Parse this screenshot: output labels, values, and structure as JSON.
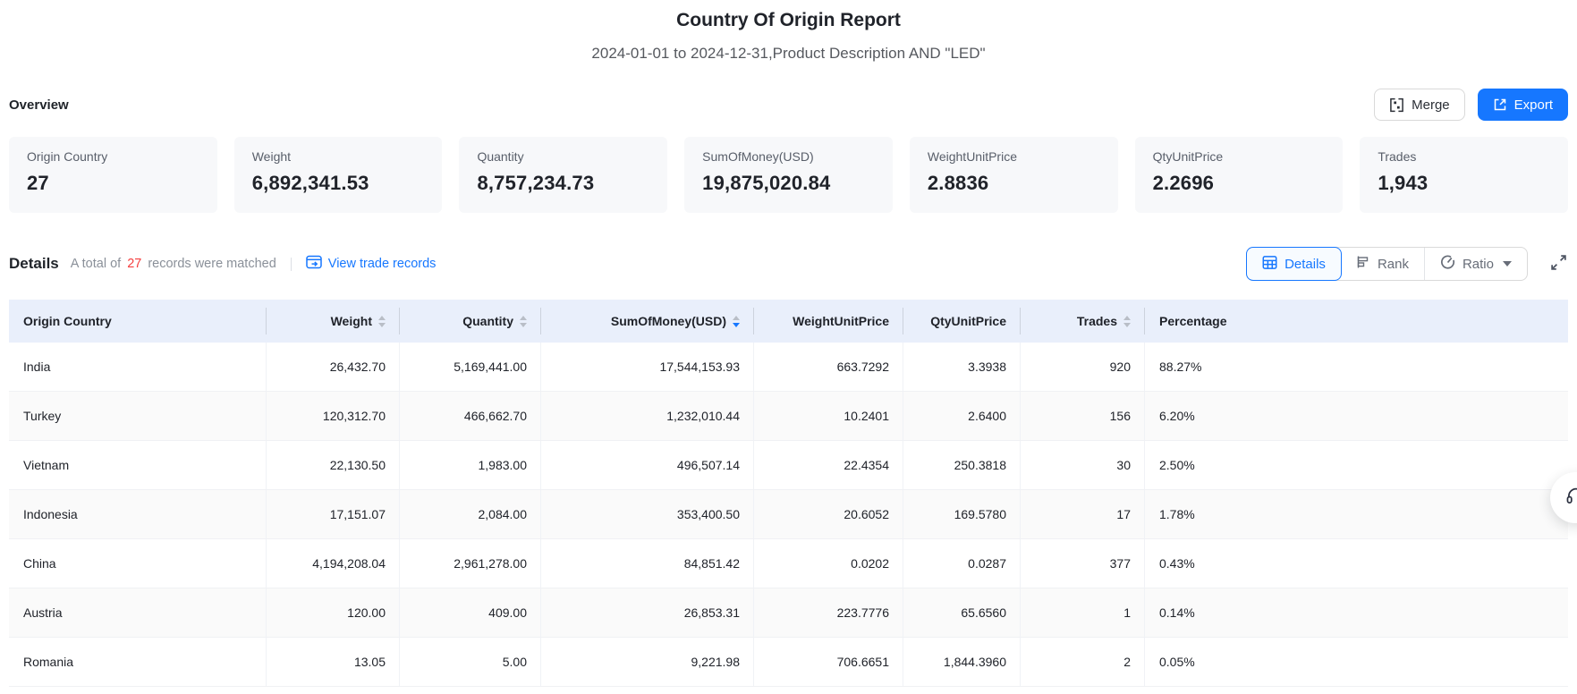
{
  "colors": {
    "accent_blue": "#1677ff",
    "count_red": "#f53f3f",
    "table_header_bg": "#e9effb",
    "card_bg": "#f7f8fa"
  },
  "report": {
    "title": "Country Of Origin Report",
    "subtitle": "2024-01-01 to 2024-12-31,Product Description AND \"LED\""
  },
  "overview": {
    "heading": "Overview",
    "merge_label": "Merge",
    "export_label": "Export",
    "cards": [
      {
        "label": "Origin Country",
        "value": "27"
      },
      {
        "label": "Weight",
        "value": "6,892,341.53"
      },
      {
        "label": "Quantity",
        "value": "8,757,234.73"
      },
      {
        "label": "SumOfMoney(USD)",
        "value": "19,875,020.84"
      },
      {
        "label": "WeightUnitPrice",
        "value": "2.8836"
      },
      {
        "label": "QtyUnitPrice",
        "value": "2.2696"
      },
      {
        "label": "Trades",
        "value": "1,943"
      }
    ]
  },
  "details": {
    "heading": "Details",
    "match_prefix": "A total of",
    "match_count": "27",
    "match_suffix": "records were matched",
    "view_trade_records_label": "View trade records",
    "tabs": [
      {
        "label": "Details",
        "active": true
      },
      {
        "label": "Rank",
        "active": false
      },
      {
        "label": "Ratio",
        "active": false,
        "dropdown": true
      }
    ]
  },
  "table": {
    "columns": [
      {
        "label": "Origin Country",
        "align": "left",
        "sortable": false,
        "sort": null
      },
      {
        "label": "Weight",
        "align": "right",
        "sortable": true,
        "sort": "none"
      },
      {
        "label": "Quantity",
        "align": "right",
        "sortable": true,
        "sort": "none"
      },
      {
        "label": "SumOfMoney(USD)",
        "align": "right",
        "sortable": true,
        "sort": "desc"
      },
      {
        "label": "WeightUnitPrice",
        "align": "right",
        "sortable": false,
        "sort": null
      },
      {
        "label": "QtyUnitPrice",
        "align": "right",
        "sortable": false,
        "sort": null
      },
      {
        "label": "Trades",
        "align": "right",
        "sortable": true,
        "sort": "none"
      },
      {
        "label": "Percentage",
        "align": "left",
        "sortable": false,
        "sort": null
      }
    ],
    "rows": [
      [
        "India",
        "26,432.70",
        "5,169,441.00",
        "17,544,153.93",
        "663.7292",
        "3.3938",
        "920",
        "88.27%"
      ],
      [
        "Turkey",
        "120,312.70",
        "466,662.70",
        "1,232,010.44",
        "10.2401",
        "2.6400",
        "156",
        "6.20%"
      ],
      [
        "Vietnam",
        "22,130.50",
        "1,983.00",
        "496,507.14",
        "22.4354",
        "250.3818",
        "30",
        "2.50%"
      ],
      [
        "Indonesia",
        "17,151.07",
        "2,084.00",
        "353,400.50",
        "20.6052",
        "169.5780",
        "17",
        "1.78%"
      ],
      [
        "China",
        "4,194,208.04",
        "2,961,278.00",
        "84,851.42",
        "0.0202",
        "0.0287",
        "377",
        "0.43%"
      ],
      [
        "Austria",
        "120.00",
        "409.00",
        "26,853.31",
        "223.7776",
        "65.6560",
        "1",
        "0.14%"
      ],
      [
        "Romania",
        "13.05",
        "5.00",
        "9,221.98",
        "706.6651",
        "1,844.3960",
        "2",
        "0.05%"
      ]
    ]
  }
}
